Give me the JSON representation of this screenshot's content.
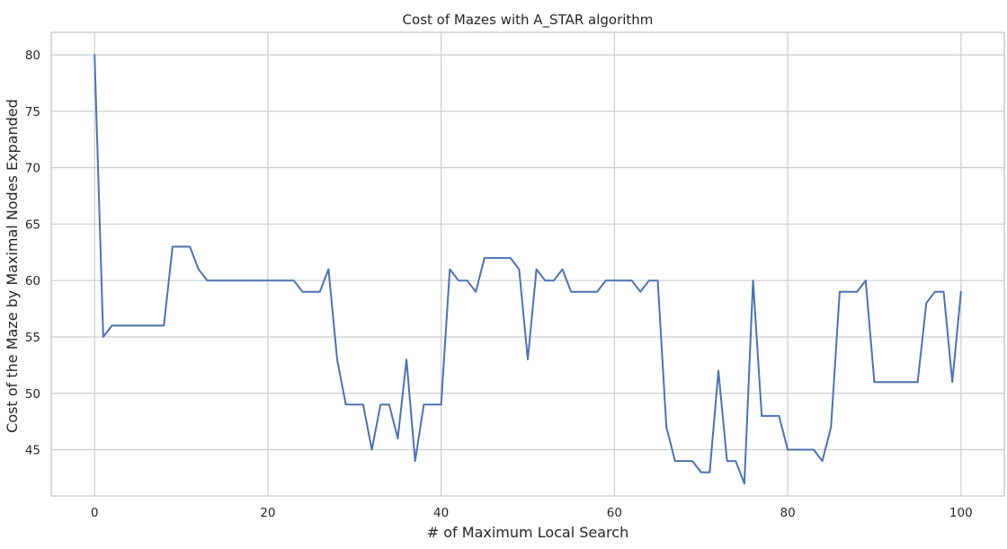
{
  "chart_data": {
    "type": "line",
    "title": "Cost of Mazes with A_STAR algorithm",
    "xlabel": "# of Maximum Local Search",
    "ylabel": "Cost of the Maze by Maximal Nodes Expanded",
    "xlim": [
      -5,
      105
    ],
    "ylim": [
      40.9,
      82.0
    ],
    "xticks": [
      0,
      20,
      40,
      60,
      80,
      100
    ],
    "yticks": [
      45,
      50,
      55,
      60,
      65,
      70,
      75,
      80
    ],
    "grid": true,
    "colors": {
      "line": "#4c72b0",
      "grid": "#cccccc",
      "text": "#262626"
    },
    "series": [
      {
        "x": [
          0,
          1,
          2,
          3,
          4,
          5,
          6,
          7,
          8,
          9,
          10,
          11,
          12,
          13,
          14,
          15,
          16,
          17,
          18,
          19,
          20,
          21,
          22,
          23,
          24,
          25,
          26,
          27,
          28,
          29,
          30,
          31,
          32,
          33,
          34,
          35,
          36,
          37,
          38,
          39,
          40,
          41,
          42,
          43,
          44,
          45,
          46,
          47,
          48,
          49,
          50,
          51,
          52,
          53,
          54,
          55,
          56,
          57,
          58,
          59,
          60,
          61,
          62,
          63,
          64,
          65,
          66,
          67,
          68,
          69,
          70,
          71,
          72,
          73,
          74,
          75,
          76,
          77,
          78,
          79,
          80,
          81,
          82,
          83,
          84,
          85,
          86,
          87,
          88,
          89,
          90,
          91,
          92,
          93,
          94,
          95,
          96,
          97,
          98,
          99,
          100
        ],
        "values": [
          80,
          55,
          56,
          56,
          56,
          56,
          56,
          56,
          56,
          63,
          63,
          63,
          61,
          60,
          60,
          60,
          60,
          60,
          60,
          60,
          60,
          60,
          60,
          60,
          59,
          59,
          59,
          61,
          53,
          49,
          49,
          49,
          45,
          49,
          49,
          46,
          53,
          44,
          49,
          49,
          49,
          61,
          60,
          60,
          59,
          62,
          62,
          62,
          62,
          61,
          53,
          61,
          60,
          60,
          61,
          59,
          59,
          59,
          59,
          60,
          60,
          60,
          60,
          59,
          60,
          60,
          47,
          44,
          44,
          44,
          43,
          43,
          52,
          44,
          44,
          42,
          60,
          48,
          48,
          48,
          45,
          45,
          45,
          45,
          44,
          47,
          59,
          59,
          59,
          60,
          51,
          51,
          51,
          51,
          51,
          51,
          58,
          59,
          59,
          51,
          59
        ]
      }
    ]
  }
}
